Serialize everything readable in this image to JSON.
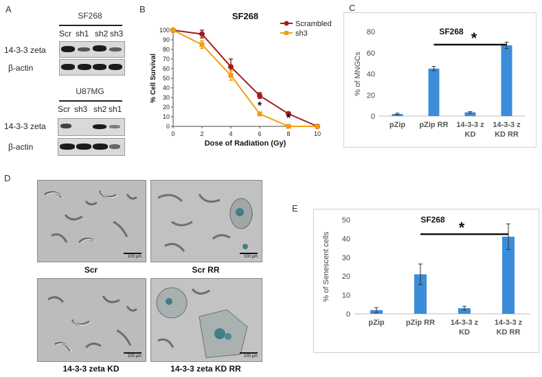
{
  "panels": {
    "A": {
      "letter": "A",
      "blot1": {
        "title": "SF268",
        "lanes": [
          "Scr",
          "sh1",
          "sh2",
          "sh3"
        ],
        "rows": [
          "14-3-3 zeta",
          "β-actin"
        ]
      },
      "blot2": {
        "title": "U87MG",
        "lanes": [
          "Scr",
          "sh3",
          "sh2",
          "sh1"
        ],
        "rows": [
          "14-3-3 zeta",
          "β-actin"
        ]
      }
    },
    "B": {
      "letter": "B"
    },
    "C": {
      "letter": "C"
    },
    "D": {
      "letter": "D",
      "images": [
        {
          "caption": "Scr",
          "scale": "100 μm"
        },
        {
          "caption": "Scr RR",
          "scale": "100 μm"
        },
        {
          "caption": "14-3-3 zeta KD",
          "scale": "100 μm"
        },
        {
          "caption": "14-3-3 zeta KD RR",
          "scale": "100 μm"
        }
      ]
    },
    "E": {
      "letter": "E"
    }
  },
  "chart_data": [
    {
      "type": "line",
      "title": "SF268",
      "xlabel": "Dose of Radiation (Gy)",
      "ylabel": "% Cell Survival",
      "x": [
        0,
        2,
        4,
        6,
        8,
        10
      ],
      "xlim": [
        0,
        10
      ],
      "ylim": [
        0,
        100
      ],
      "yticks": [
        0,
        10,
        20,
        30,
        40,
        50,
        60,
        70,
        80,
        90,
        100
      ],
      "xticks": [
        0,
        2,
        4,
        6,
        8,
        10
      ],
      "legend_position": "top-right",
      "series": [
        {
          "name": "Scrambled",
          "color": "#a31c1c",
          "values": [
            100,
            96,
            62,
            32,
            13,
            0
          ],
          "errors": [
            0,
            4,
            8,
            3,
            2,
            0
          ]
        },
        {
          "name": "sh3",
          "color": "#f39c12",
          "values": [
            100,
            85,
            53,
            13,
            0,
            0
          ],
          "errors": [
            0,
            4,
            5,
            2,
            0,
            0
          ]
        }
      ],
      "annotations": [
        {
          "text": "*",
          "x": 6
        },
        {
          "text": "*",
          "x": 8
        }
      ]
    },
    {
      "type": "bar",
      "title": "SF268",
      "ylabel": "% of MNGCs",
      "xlabel": "",
      "categories": [
        "pZip",
        "pZip RR",
        "14-3-3 z KD",
        "14-3-3 z KD RR"
      ],
      "values": [
        2,
        45,
        3.5,
        67
      ],
      "errors": [
        0.7,
        2,
        0.7,
        3
      ],
      "ylim": [
        0,
        80
      ],
      "yticks": [
        0,
        20,
        40,
        60,
        80
      ],
      "color": "#3b8dd9",
      "significance": {
        "from": 1,
        "to": 3,
        "text": "*"
      }
    },
    {
      "type": "bar",
      "title": "SF268",
      "ylabel": "% of Senescent cells",
      "xlabel": "",
      "categories": [
        "pZip",
        "pZip RR",
        "14-3-3 z KD",
        "14-3-3 z KD RR"
      ],
      "values": [
        2,
        21,
        3,
        41
      ],
      "errors": [
        1.3,
        5.5,
        1,
        6.8
      ],
      "ylim": [
        0,
        50
      ],
      "yticks": [
        0,
        10,
        20,
        30,
        40,
        50
      ],
      "color": "#3b8dd9",
      "significance": {
        "from": 1,
        "to": 3,
        "text": "*"
      }
    }
  ]
}
